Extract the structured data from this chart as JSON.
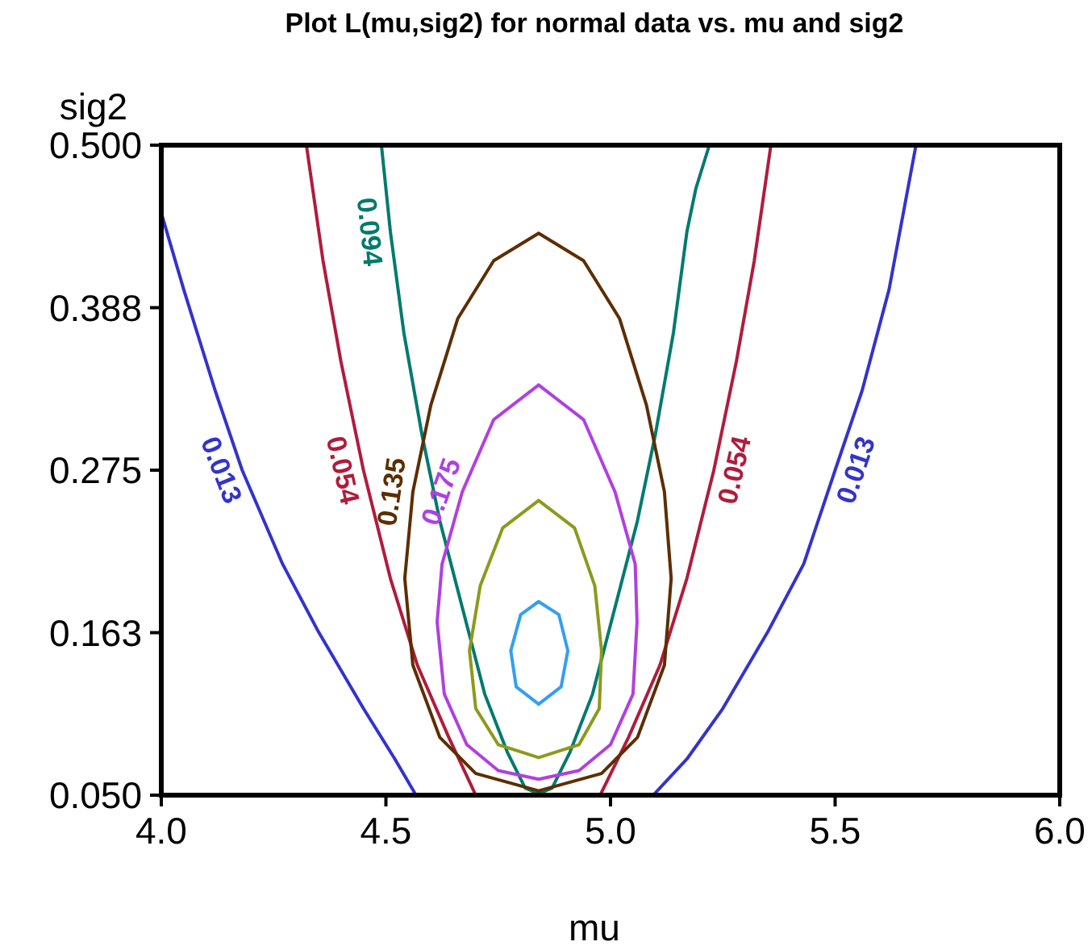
{
  "chart_data": {
    "type": "line",
    "title": "Plot L(mu,sig2) for normal data vs. mu and sig2",
    "xlabel": "mu",
    "ylabel": "sig2",
    "xlim": [
      4.0,
      6.0
    ],
    "ylim": [
      0.05,
      0.5
    ],
    "xticks": [
      {
        "value": 4.0,
        "label": "4.0"
      },
      {
        "value": 4.5,
        "label": "4.5"
      },
      {
        "value": 5.0,
        "label": "5.0"
      },
      {
        "value": 5.5,
        "label": "5.5"
      },
      {
        "value": 6.0,
        "label": "6.0"
      }
    ],
    "yticks": [
      {
        "value": 0.05,
        "label": "0.050"
      },
      {
        "value": 0.1625,
        "label": "0.163"
      },
      {
        "value": 0.275,
        "label": "0.275"
      },
      {
        "value": 0.3875,
        "label": "0.388"
      },
      {
        "value": 0.5,
        "label": "0.500"
      }
    ],
    "series": [
      {
        "name": "0.013",
        "color": "#3333cc",
        "x": [
          4.0,
          4.05,
          4.12,
          4.18,
          4.27,
          4.35,
          4.45,
          4.52,
          4.567,
          null,
          5.095,
          5.17,
          5.25,
          5.35,
          5.43,
          5.5,
          5.56,
          5.62,
          5.68
        ],
        "values": [
          0.453,
          0.4,
          0.33,
          0.275,
          0.21,
          0.163,
          0.11,
          0.075,
          0.05,
          null,
          0.05,
          0.075,
          0.11,
          0.163,
          0.21,
          0.275,
          0.33,
          0.4,
          0.5
        ]
      },
      {
        "name": "0.054",
        "color": "#b01c3c",
        "x": [
          4.323,
          4.36,
          4.4,
          4.45,
          4.51,
          4.57,
          4.64,
          4.7,
          null,
          4.977,
          5.04,
          5.11,
          5.17,
          5.23,
          5.28,
          5.32,
          5.357
        ],
        "values": [
          0.5,
          0.42,
          0.35,
          0.275,
          0.2,
          0.14,
          0.09,
          0.05,
          null,
          0.05,
          0.09,
          0.14,
          0.2,
          0.275,
          0.35,
          0.42,
          0.5
        ]
      },
      {
        "name": "0.094",
        "color": "#007a6e",
        "x": [
          4.49,
          4.51,
          4.54,
          4.58,
          4.62,
          4.67,
          4.72,
          4.77,
          4.81,
          4.84,
          4.87,
          4.91,
          4.96,
          5.01,
          5.06,
          5.1,
          5.14,
          5.17,
          5.19,
          5.22
        ],
        "values": [
          0.5,
          0.44,
          0.37,
          0.3,
          0.24,
          0.18,
          0.12,
          0.08,
          0.055,
          0.051,
          0.055,
          0.08,
          0.12,
          0.18,
          0.24,
          0.3,
          0.37,
          0.44,
          0.47,
          0.5
        ]
      },
      {
        "name": "0.135",
        "color": "#5c2e00",
        "x": [
          4.84,
          4.74,
          4.66,
          4.6,
          4.56,
          4.542,
          4.56,
          4.62,
          4.7,
          4.84,
          null,
          4.84,
          4.98,
          5.06,
          5.12,
          5.135,
          5.12,
          5.08,
          5.02,
          4.94,
          4.84
        ],
        "values": [
          0.439,
          0.42,
          0.38,
          0.32,
          0.26,
          0.2,
          0.14,
          0.09,
          0.065,
          0.053,
          null,
          0.053,
          0.065,
          0.09,
          0.14,
          0.2,
          0.26,
          0.32,
          0.38,
          0.42,
          0.439
        ]
      },
      {
        "name": "0.175",
        "color": "#b040e0",
        "x": [
          4.84,
          4.74,
          4.67,
          4.625,
          4.614,
          4.63,
          4.68,
          4.75,
          4.84,
          null,
          4.84,
          4.93,
          5.0,
          5.05,
          5.059,
          5.055,
          5.01,
          4.94,
          4.84
        ],
        "values": [
          0.334,
          0.31,
          0.26,
          0.21,
          0.17,
          0.12,
          0.085,
          0.067,
          0.061,
          null,
          0.061,
          0.067,
          0.085,
          0.12,
          0.17,
          0.21,
          0.26,
          0.31,
          0.334
        ]
      },
      {
        "color": "#8c9a1c",
        "x": [
          4.84,
          4.76,
          4.71,
          4.686,
          4.7,
          4.75,
          4.84,
          null,
          4.84,
          4.93,
          4.975,
          4.98,
          4.965,
          4.92,
          4.84
        ],
        "values": [
          0.254,
          0.235,
          0.195,
          0.15,
          0.11,
          0.085,
          0.076,
          null,
          0.076,
          0.085,
          0.11,
          0.15,
          0.195,
          0.235,
          0.254
        ]
      },
      {
        "color": "#33a0ee",
        "x": [
          4.84,
          4.8,
          4.778,
          4.79,
          4.84,
          null,
          4.84,
          4.89,
          4.905,
          4.885,
          4.84
        ],
        "values": [
          0.184,
          0.175,
          0.15,
          0.125,
          0.113,
          null,
          0.113,
          0.125,
          0.15,
          0.175,
          0.184
        ]
      }
    ]
  }
}
